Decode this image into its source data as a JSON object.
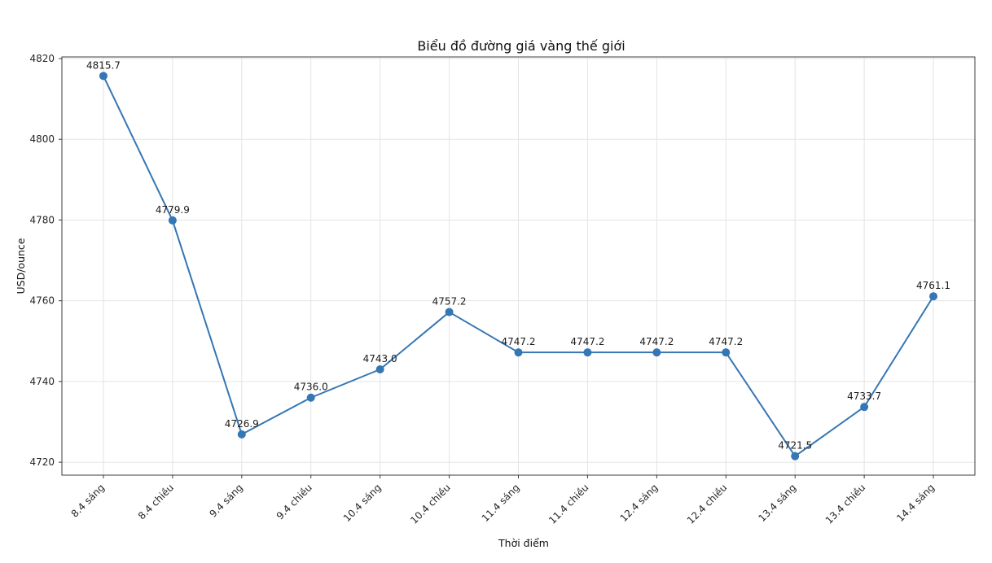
{
  "figure": {
    "title": "Biểu đồ đường giá vàng thế giới",
    "xlabel": "Thời điểm",
    "ylabel": "USD/ounce"
  },
  "chart_data": {
    "type": "line",
    "title": "Biểu đồ đường giá vàng thế giới",
    "xlabel": "Thời điểm",
    "ylabel": "USD/ounce",
    "categories": [
      "8.4 sáng",
      "8.4 chiều",
      "9.4 sáng",
      "9.4 chiều",
      "10.4 sáng",
      "10.4 chiều",
      "11.4 sáng",
      "11.4 chiều",
      "12.4 sáng",
      "12.4 chiều",
      "13.4 sáng",
      "13.4 chiều",
      "14.4 sáng"
    ],
    "values": [
      4815.7,
      4779.9,
      4726.9,
      4736.0,
      4743.0,
      4757.2,
      4747.2,
      4747.2,
      4747.2,
      4747.2,
      4721.5,
      4733.7,
      4761.1
    ],
    "point_labels": [
      "4815.7",
      "4779.9",
      "4726.9",
      "4736.0",
      "4743.0",
      "4757.2",
      "4747.2",
      "4747.2",
      "4747.2",
      "4747.2",
      "4721.5",
      "4733.7",
      "4761.1"
    ],
    "yticks": [
      4720,
      4740,
      4760,
      4780,
      4800,
      4820
    ],
    "ylim": [
      4716.8,
      4820.4
    ],
    "xlim": [
      -0.6,
      12.6
    ],
    "grid": true,
    "legend": null,
    "x_tick_rotation_deg": 45,
    "line_color": "#3576b5",
    "marker": "circle",
    "marker_radius_px": 5,
    "grid_color": "#e4e4e4",
    "spine_color": "#3c3c3c",
    "background_color": "#ffffff"
  }
}
